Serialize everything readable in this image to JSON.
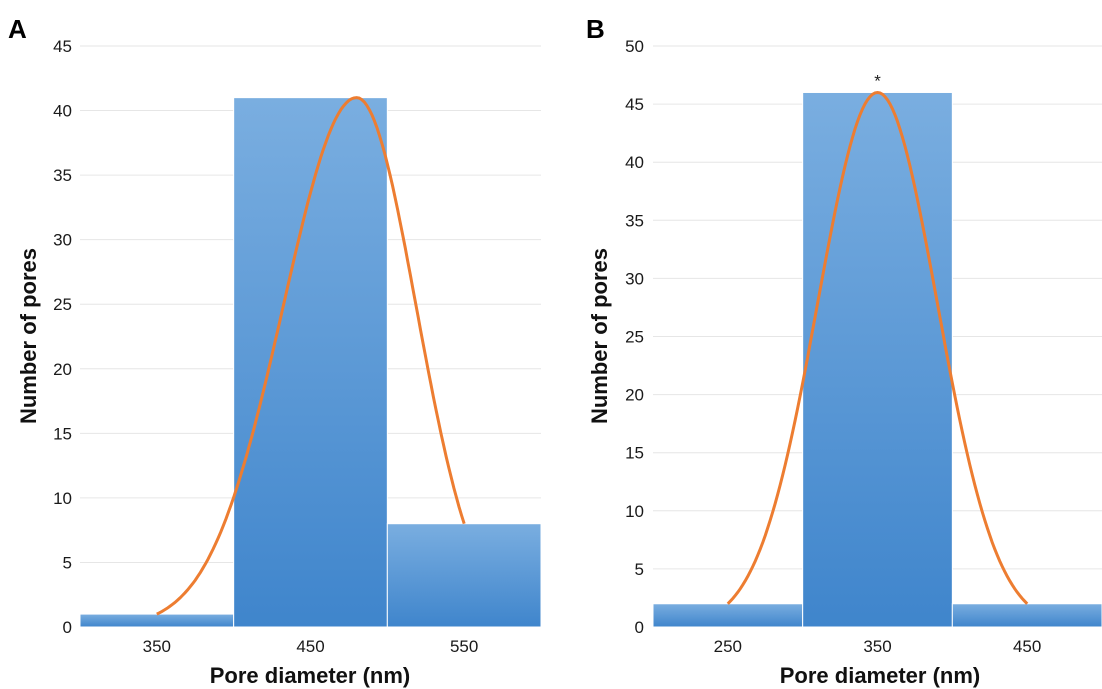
{
  "colors": {
    "bar": "#5b9bd5",
    "bar_top": "#7aaee0",
    "bar_bottom": "#3f85cc",
    "curve": "#ed7d31",
    "grid": "#e6e6e6"
  },
  "chart_data": [
    {
      "panel_label": "A",
      "type": "bar",
      "categories": [
        "350",
        "450",
        "550"
      ],
      "values": [
        1,
        41,
        8
      ],
      "xlabel": "Pore diameter (nm)",
      "ylabel": "Number of pores",
      "ylim": [
        0,
        45
      ],
      "yticks": [
        0,
        5,
        10,
        15,
        20,
        25,
        30,
        35,
        40,
        45
      ],
      "grid": true,
      "fit_curve": {
        "type": "line",
        "peak_category": 1.3,
        "peak_value": 41
      },
      "annotations": []
    },
    {
      "panel_label": "B",
      "type": "bar",
      "categories": [
        "250",
        "350",
        "450"
      ],
      "values": [
        2,
        46,
        2
      ],
      "xlabel": "Pore diameter (nm)",
      "ylabel": "Number of pores",
      "ylim": [
        0,
        50
      ],
      "yticks": [
        0,
        5,
        10,
        15,
        20,
        25,
        30,
        35,
        40,
        45,
        50
      ],
      "grid": true,
      "fit_curve": {
        "type": "line",
        "peak_category": 1.0,
        "peak_value": 46
      },
      "annotations": [
        {
          "text": "*",
          "category": "350"
        }
      ]
    }
  ]
}
